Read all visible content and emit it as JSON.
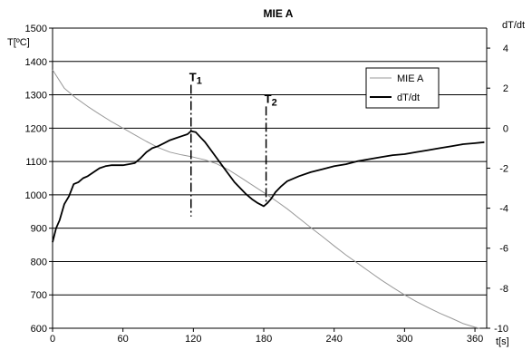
{
  "chart_data": {
    "type": "line",
    "title": "MIE A",
    "xlabel": "t[s]",
    "ylabel_left": "T[ºC]",
    "ylabel_right": "dT/dt",
    "xlim": [
      0,
      370
    ],
    "xticks": [
      0,
      60,
      120,
      180,
      240,
      300,
      360
    ],
    "ylim_left": [
      600,
      1500
    ],
    "yticks_left": [
      600,
      700,
      800,
      900,
      1000,
      1100,
      1200,
      1300,
      1400,
      1500
    ],
    "ylim_right": [
      -10,
      5
    ],
    "yticks_right": [
      -10,
      -8,
      -6,
      -4,
      -2,
      0,
      2,
      4
    ],
    "grid": "horizontal",
    "legend": {
      "position": "top-right",
      "entries": [
        {
          "name": "MIE A",
          "color": "#999999"
        },
        {
          "name": "dT/dt",
          "color": "#000000"
        }
      ]
    },
    "series": [
      {
        "name": "MIE A",
        "axis": "left",
        "color": "#999999",
        "x": [
          0,
          10,
          20,
          30,
          40,
          50,
          60,
          70,
          80,
          90,
          100,
          110,
          120,
          130,
          140,
          150,
          160,
          170,
          180,
          190,
          200,
          210,
          220,
          230,
          240,
          250,
          260,
          270,
          280,
          290,
          300,
          310,
          320,
          330,
          340,
          350,
          360,
          364
        ],
        "values": [
          1375,
          1320,
          1290,
          1265,
          1242,
          1220,
          1200,
          1180,
          1160,
          1142,
          1128,
          1120,
          1113,
          1105,
          1093,
          1075,
          1053,
          1030,
          1007,
          983,
          958,
          930,
          902,
          875,
          847,
          820,
          795,
          770,
          745,
          722,
          700,
          680,
          662,
          645,
          630,
          614,
          603,
          600
        ]
      },
      {
        "name": "dT/dt",
        "axis": "right",
        "color": "#000000",
        "x": [
          0,
          3,
          6,
          10,
          14,
          18,
          22,
          26,
          30,
          35,
          40,
          45,
          50,
          55,
          60,
          65,
          70,
          75,
          80,
          85,
          90,
          95,
          100,
          105,
          110,
          115,
          118,
          122,
          126,
          130,
          135,
          140,
          145,
          150,
          155,
          160,
          165,
          170,
          175,
          180,
          183,
          186,
          190,
          195,
          200,
          210,
          220,
          230,
          240,
          250,
          260,
          270,
          280,
          290,
          300,
          310,
          320,
          330,
          340,
          350,
          360,
          368
        ],
        "values": [
          -5.7,
          -5.0,
          -4.6,
          -3.8,
          -3.4,
          -2.8,
          -2.7,
          -2.5,
          -2.4,
          -2.2,
          -2.0,
          -1.9,
          -1.85,
          -1.85,
          -1.85,
          -1.8,
          -1.75,
          -1.5,
          -1.2,
          -1.0,
          -0.9,
          -0.75,
          -0.6,
          -0.5,
          -0.4,
          -0.3,
          -0.15,
          -0.2,
          -0.45,
          -0.7,
          -1.1,
          -1.5,
          -1.9,
          -2.3,
          -2.7,
          -3.0,
          -3.3,
          -3.55,
          -3.75,
          -3.9,
          -3.75,
          -3.55,
          -3.2,
          -2.9,
          -2.65,
          -2.4,
          -2.2,
          -2.05,
          -1.9,
          -1.8,
          -1.65,
          -1.55,
          -1.45,
          -1.35,
          -1.3,
          -1.2,
          -1.1,
          -1.0,
          -0.9,
          -0.8,
          -0.75,
          -0.7
        ]
      }
    ],
    "annotations": [
      {
        "label": "T1",
        "base": "T",
        "sub": "1",
        "x": 118,
        "y_top": 1330,
        "y_bottom": 935
      },
      {
        "label": "T2",
        "base": "T",
        "sub": "2",
        "x": 182,
        "y_top": 1265,
        "y_bottom": 975
      }
    ]
  }
}
